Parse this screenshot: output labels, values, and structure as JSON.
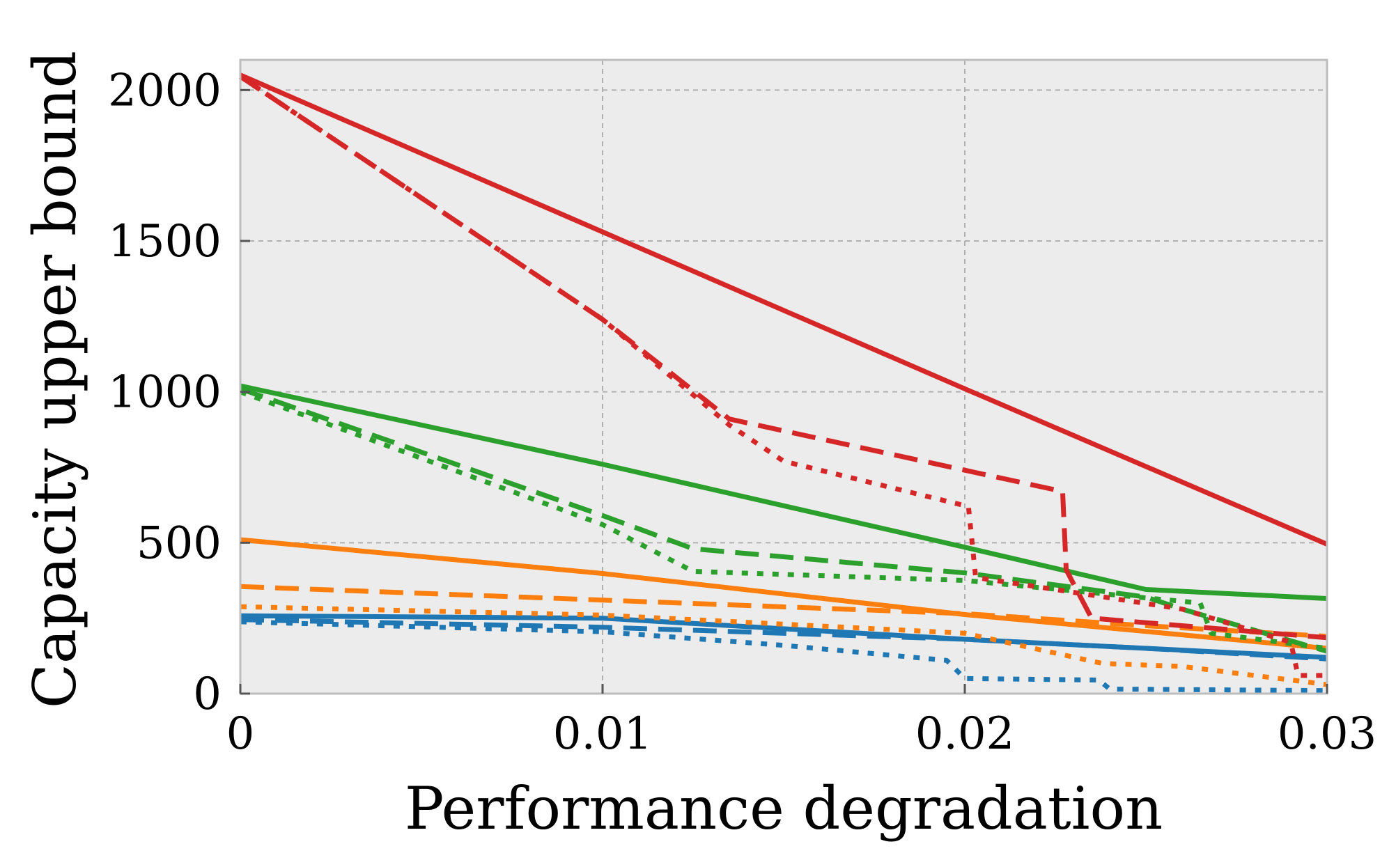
{
  "chart_data": {
    "type": "line",
    "title": "",
    "xlabel": "Performance degradation",
    "ylabel": "Capacity upper bound",
    "xlim": [
      0,
      0.03
    ],
    "ylim": [
      0,
      2100
    ],
    "xticks": [
      0,
      0.01,
      0.02,
      0.03
    ],
    "xtick_labels": [
      "0",
      "0.01",
      "0.02",
      "0.03"
    ],
    "yticks": [
      0,
      500,
      1000,
      1500,
      2000
    ],
    "ytick_labels": [
      "0",
      "500",
      "1000",
      "1500",
      "2000"
    ],
    "grid": true,
    "legend": "none",
    "colors": {
      "blue": "#1f77b4",
      "orange": "#ff7f0e",
      "green": "#2ca02c",
      "red": "#d62728"
    },
    "series": [
      {
        "name": "blue-solid",
        "color": "#1f77b4",
        "style": "solid",
        "x": [
          0,
          0.01,
          0.02,
          0.025,
          0.03
        ],
        "y": [
          258,
          250,
          180,
          150,
          120
        ]
      },
      {
        "name": "blue-dashed",
        "color": "#1f77b4",
        "style": "dashed",
        "x": [
          0,
          0.01,
          0.02,
          0.025,
          0.03
        ],
        "y": [
          245,
          220,
          180,
          150,
          115
        ]
      },
      {
        "name": "blue-dotted",
        "color": "#1f77b4",
        "style": "dotted",
        "x": [
          0,
          0.01,
          0.015,
          0.0195,
          0.02,
          0.0237,
          0.024,
          0.03
        ],
        "y": [
          238,
          205,
          160,
          110,
          50,
          45,
          15,
          10
        ]
      },
      {
        "name": "orange-solid",
        "color": "#ff7f0e",
        "style": "solid",
        "x": [
          0,
          0.01,
          0.02,
          0.03
        ],
        "y": [
          510,
          398,
          262,
          150
        ]
      },
      {
        "name": "orange-dashed",
        "color": "#ff7f0e",
        "style": "dashed",
        "x": [
          0,
          0.01,
          0.02,
          0.025,
          0.03
        ],
        "y": [
          355,
          310,
          265,
          225,
          190
        ]
      },
      {
        "name": "orange-dotted",
        "color": "#ff7f0e",
        "style": "dotted",
        "x": [
          0,
          0.01,
          0.02,
          0.0238,
          0.026,
          0.03
        ],
        "y": [
          288,
          260,
          200,
          100,
          90,
          30
        ]
      },
      {
        "name": "green-solid",
        "color": "#2ca02c",
        "style": "solid",
        "x": [
          0,
          0.01,
          0.02,
          0.025,
          0.03
        ],
        "y": [
          1020,
          760,
          485,
          345,
          315
        ]
      },
      {
        "name": "green-dashed",
        "color": "#2ca02c",
        "style": "dashed",
        "x": [
          0,
          0.01,
          0.0125,
          0.02,
          0.025,
          0.026,
          0.03
        ],
        "y": [
          1010,
          590,
          480,
          400,
          320,
          280,
          140
        ]
      },
      {
        "name": "green-dotted",
        "color": "#2ca02c",
        "style": "dotted",
        "x": [
          0,
          0.01,
          0.0125,
          0.02,
          0.0265,
          0.0268,
          0.03
        ],
        "y": [
          1000,
          560,
          405,
          375,
          300,
          200,
          150
        ]
      },
      {
        "name": "red-solid",
        "color": "#d62728",
        "style": "solid",
        "x": [
          0,
          0.01,
          0.02,
          0.03
        ],
        "y": [
          2050,
          1530,
          1010,
          495
        ]
      },
      {
        "name": "red-dashed",
        "color": "#d62728",
        "style": "dashed",
        "x": [
          0,
          0.01,
          0.0135,
          0.0227,
          0.0228,
          0.0235,
          0.03
        ],
        "y": [
          2045,
          1240,
          910,
          670,
          410,
          250,
          185
        ]
      },
      {
        "name": "red-dotted",
        "color": "#d62728",
        "style": "dotted",
        "x": [
          0,
          0.01,
          0.0135,
          0.015,
          0.0201,
          0.0203,
          0.0225,
          0.026,
          0.029,
          0.0292,
          0.03
        ],
        "y": [
          2045,
          1240,
          890,
          770,
          620,
          385,
          345,
          280,
          170,
          60,
          60
        ]
      }
    ]
  }
}
